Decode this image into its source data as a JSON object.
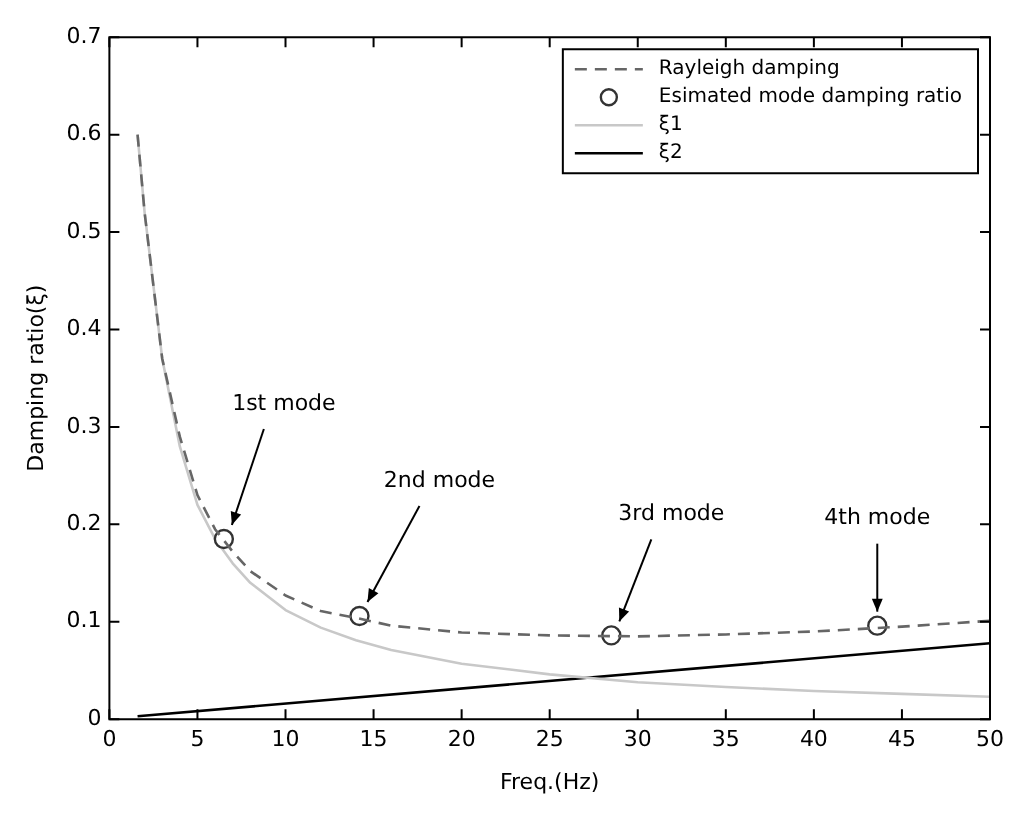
{
  "chart_data": {
    "type": "line",
    "xlabel": "Freq.(Hz)",
    "ylabel": "Damping ratio(ξ)",
    "xlim": [
      0,
      50
    ],
    "xticks": [
      0,
      5,
      10,
      15,
      20,
      25,
      30,
      35,
      40,
      45,
      50
    ],
    "ylim": [
      0,
      0.7
    ],
    "yticks": [
      0,
      0.1,
      0.2,
      0.3,
      0.4,
      0.5,
      0.6,
      0.7
    ],
    "grid": false,
    "legend": "top right",
    "series": [
      {
        "name": "Rayleigh damping",
        "type": "line",
        "color": "#666666",
        "line_style": "dashed",
        "marker": "none",
        "x": [
          1.6,
          2,
          3,
          4,
          5,
          6,
          7,
          8,
          10,
          12,
          14,
          16,
          20,
          25,
          30,
          35,
          40,
          45,
          50
        ],
        "values": [
          0.6,
          0.52,
          0.37,
          0.29,
          0.23,
          0.195,
          0.172,
          0.152,
          0.127,
          0.111,
          0.104,
          0.096,
          0.089,
          0.086,
          0.085,
          0.087,
          0.09,
          0.095,
          0.101
        ]
      },
      {
        "name": "Esimated mode damping ratio",
        "type": "scatter",
        "color": "#333333",
        "marker": "circle",
        "x": [
          6.5,
          14.2,
          28.5,
          43.6
        ],
        "values": [
          0.185,
          0.106,
          0.086,
          0.096
        ]
      },
      {
        "name": "ξ1",
        "type": "line",
        "color": "#c8c8c8",
        "line_style": "solid",
        "marker": "none",
        "x": [
          1.6,
          2,
          3,
          4,
          5,
          6,
          7,
          8,
          10,
          12,
          14,
          16,
          20,
          25,
          30,
          35,
          40,
          45,
          50
        ],
        "values": [
          0.6,
          0.52,
          0.37,
          0.28,
          0.22,
          0.185,
          0.16,
          0.14,
          0.112,
          0.094,
          0.081,
          0.071,
          0.057,
          0.046,
          0.038,
          0.033,
          0.029,
          0.026,
          0.023
        ]
      },
      {
        "name": "ξ2",
        "type": "line",
        "color": "#000000",
        "line_style": "solid",
        "marker": "none",
        "x": [
          1.6,
          50
        ],
        "values": [
          0.003,
          0.078
        ]
      }
    ],
    "annotations": [
      {
        "text": "1st mode",
        "x": 6.5,
        "y": 0.185
      },
      {
        "text": "2nd mode",
        "x": 14.2,
        "y": 0.106
      },
      {
        "text": "3rd mode",
        "x": 28.5,
        "y": 0.086
      },
      {
        "text": "4th mode",
        "x": 43.6,
        "y": 0.096
      }
    ]
  }
}
